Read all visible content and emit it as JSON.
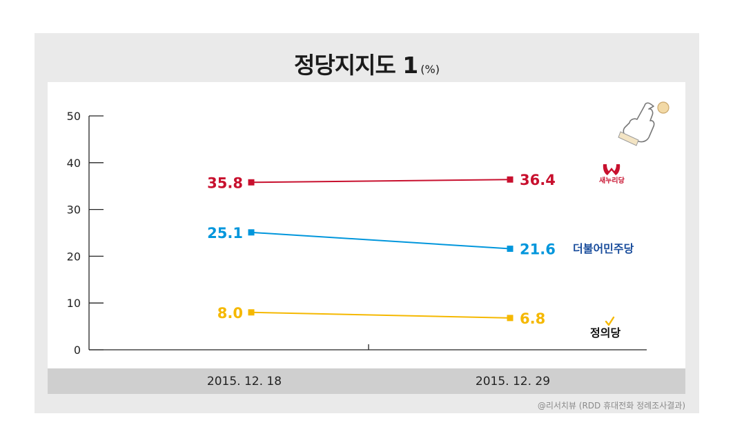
{
  "title": "정당지지도 1",
  "title_unit": "(%)",
  "source": "@리서치뷰 (RDD 휴대전화 정례조사결과)",
  "chart_data": {
    "type": "line",
    "title": "정당지지도 1 (%)",
    "xlabel": "",
    "ylabel": "",
    "ylim": [
      0,
      50
    ],
    "yticks": [
      0,
      10,
      20,
      30,
      40,
      50
    ],
    "categories": [
      "2015. 12. 18",
      "2015. 12. 29"
    ],
    "grid": false,
    "legend": "right (party logos)",
    "series": [
      {
        "name": "새누리당",
        "values": [
          35.8,
          36.4
        ],
        "labels": [
          "35.8",
          "36.4"
        ],
        "color": "#c8102e"
      },
      {
        "name": "더불어민주당",
        "values": [
          25.1,
          21.6
        ],
        "labels": [
          "25.1",
          "21.6"
        ],
        "color": "#0096dc"
      },
      {
        "name": "정의당",
        "values": [
          8.0,
          6.8
        ],
        "labels": [
          "8.0",
          "6.8"
        ],
        "color": "#f5b800"
      }
    ]
  },
  "logos": {
    "saenuri": {
      "text": "새누리당",
      "color": "#c8102e"
    },
    "minju": {
      "text": "더불어민주당",
      "color": "#1a4d9c"
    },
    "justice": {
      "text": "정의당",
      "color": "#111111",
      "check_color": "#f5b800"
    }
  }
}
